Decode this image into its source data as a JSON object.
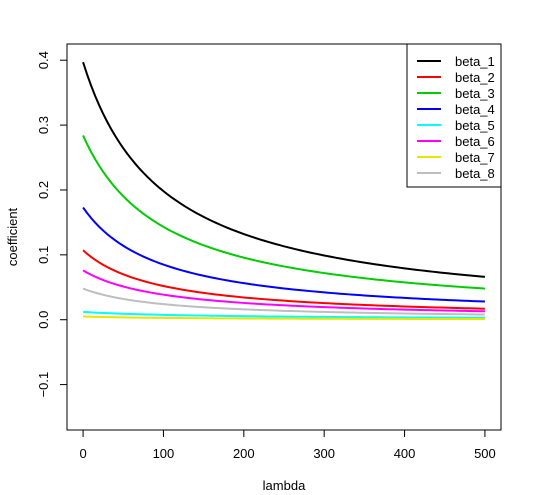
{
  "chart_data": {
    "type": "line",
    "xlabel": "lambda",
    "ylabel": "coefficient",
    "xlim": [
      -20,
      520
    ],
    "ylim": [
      -0.17,
      0.425
    ],
    "x_ticks": [
      "0",
      "100",
      "200",
      "300",
      "400",
      "500"
    ],
    "y_ticks": [
      "-0.1",
      "0.0",
      "0.1",
      "0.2",
      "0.3",
      "0.4"
    ],
    "legend_position": "top-right",
    "x": [
      0,
      500
    ],
    "series": [
      {
        "name": "beta_1",
        "color": "#000000",
        "start": 0.397,
        "end": 0.066
      },
      {
        "name": "beta_2",
        "color": "#ff0000",
        "start": 0.107,
        "end": 0.017
      },
      {
        "name": "beta_3",
        "color": "#00cd00",
        "start": 0.284,
        "end": 0.048
      },
      {
        "name": "beta_4",
        "color": "#0000ff",
        "start": 0.173,
        "end": 0.028
      },
      {
        "name": "beta_5",
        "color": "#00ffff",
        "start": 0.012,
        "end": 0.003
      },
      {
        "name": "beta_6",
        "color": "#ff00ff",
        "start": 0.076,
        "end": 0.013
      },
      {
        "name": "beta_7",
        "color": "#e6e600",
        "start": 0.005,
        "end": 0.001
      },
      {
        "name": "beta_8",
        "color": "#bebebe",
        "start": 0.048,
        "end": 0.008
      }
    ]
  }
}
